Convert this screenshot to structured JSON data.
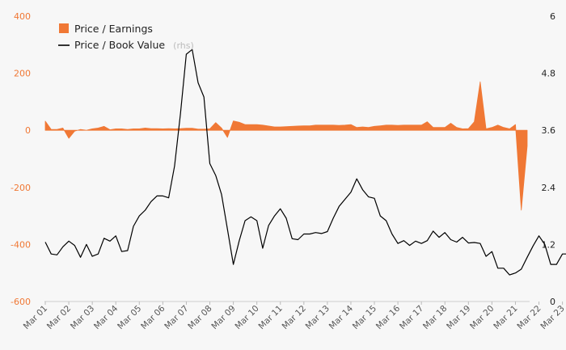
{
  "chart_data": {
    "type": "area",
    "title": "",
    "xlabel": "",
    "ylabel": "",
    "y_left": {
      "min": -600,
      "max": 400,
      "ticks": [
        400,
        200,
        0,
        -200,
        -400,
        -600
      ]
    },
    "y_right": {
      "min": 0,
      "max": 6,
      "ticks": [
        6,
        4.8,
        3.6,
        2.4,
        1.2,
        0
      ]
    },
    "x_ticks": [
      "Mar 01",
      "Mar 02",
      "Mar 03",
      "Mar 04",
      "Mar 05",
      "Mar 06",
      "Mar 07",
      "Mar 08",
      "Mar 09",
      "Mar 10",
      "Mar 11",
      "Mar 12",
      "Mar 13",
      "Mar 14",
      "Mar 15",
      "Mar 16",
      "Mar 17",
      "Mar 18",
      "Mar 19",
      "Mar 20",
      "Mar 21",
      "Mar 22",
      "Mar 23"
    ],
    "x_start": 2001.0,
    "x_step": 0.25,
    "legend": {
      "position": "top-left",
      "pe_label": "Price / Earnings",
      "pb_label": "Price / Book Value",
      "pb_note": "(rhs)"
    },
    "colors": {
      "pe": "#f07835",
      "pb": "#000000",
      "left_axis": "#f07835",
      "right_axis": "#222222"
    },
    "series": [
      {
        "name": "Price / Earnings",
        "axis": "left",
        "type": "area",
        "values": [
          32,
          3,
          3,
          8,
          -28,
          -3,
          3,
          0,
          5,
          8,
          14,
          2,
          5,
          5,
          3,
          5,
          5,
          8,
          6,
          6,
          5,
          6,
          5,
          6,
          7,
          7,
          4,
          4,
          5,
          27,
          8,
          -25,
          33,
          28,
          20,
          20,
          20,
          18,
          15,
          12,
          12,
          13,
          14,
          15,
          16,
          16,
          18,
          18,
          18,
          18,
          17,
          18,
          20,
          10,
          12,
          10,
          14,
          16,
          18,
          18,
          17,
          18,
          18,
          18,
          18,
          30,
          10,
          10,
          10,
          25,
          10,
          5,
          6,
          30,
          170,
          5,
          10,
          18,
          10,
          5,
          20,
          -280,
          -55
        ]
      },
      {
        "name": "Price / Book Value",
        "axis": "right",
        "type": "line",
        "values": [
          1.25,
          1.0,
          0.98,
          1.15,
          1.27,
          1.18,
          0.93,
          1.2,
          0.95,
          1.0,
          1.33,
          1.27,
          1.38,
          1.05,
          1.07,
          1.58,
          1.8,
          1.92,
          2.1,
          2.22,
          2.22,
          2.18,
          2.85,
          3.95,
          5.2,
          5.3,
          4.6,
          4.3,
          2.9,
          2.65,
          2.25,
          1.52,
          0.78,
          1.28,
          1.7,
          1.78,
          1.7,
          1.12,
          1.6,
          1.8,
          1.95,
          1.75,
          1.32,
          1.3,
          1.42,
          1.42,
          1.45,
          1.43,
          1.47,
          1.75,
          2.0,
          2.15,
          2.3,
          2.58,
          2.35,
          2.2,
          2.17,
          1.8,
          1.7,
          1.42,
          1.22,
          1.28,
          1.18,
          1.27,
          1.22,
          1.28,
          1.48,
          1.35,
          1.45,
          1.3,
          1.25,
          1.35,
          1.23,
          1.24,
          1.22,
          0.95,
          1.05,
          0.7,
          0.7,
          0.56,
          0.6,
          0.68,
          0.93,
          1.17,
          1.38,
          1.2,
          0.78,
          0.78,
          1.0,
          1.0,
          1.32,
          1.27
        ]
      }
    ]
  }
}
